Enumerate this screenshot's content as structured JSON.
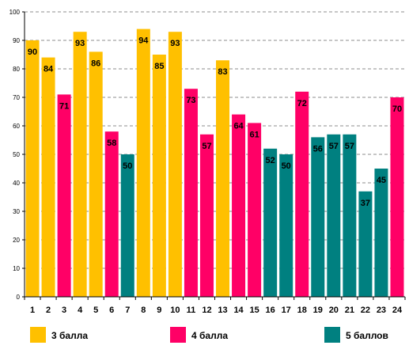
{
  "chart_data": {
    "type": "bar",
    "categories": [
      "1",
      "2",
      "3",
      "4",
      "5",
      "6",
      "7",
      "8",
      "9",
      "10",
      "11",
      "12",
      "13",
      "14",
      "15",
      "16",
      "17",
      "18",
      "19",
      "20",
      "21",
      "22",
      "23",
      "24"
    ],
    "values": [
      90,
      84,
      71,
      93,
      86,
      58,
      50,
      94,
      85,
      93,
      73,
      57,
      83,
      64,
      61,
      52,
      50,
      72,
      56,
      57,
      57,
      37,
      45,
      70
    ],
    "groups": [
      "3 балла",
      "3 балла",
      "4 балла",
      "3 балла",
      "3 балла",
      "4 балла",
      "5 баллов",
      "3 балла",
      "3 балла",
      "3 балла",
      "4 балла",
      "4 балла",
      "3 балла",
      "4 балла",
      "4 балла",
      "5 баллов",
      "5 баллов",
      "4 балла",
      "5 баллов",
      "5 баллов",
      "5 баллов",
      "5 баллов",
      "5 баллов",
      "4 балла"
    ],
    "ylim": [
      0,
      100
    ],
    "yticks": [
      0,
      10,
      20,
      30,
      40,
      50,
      60,
      70,
      80,
      90,
      100
    ],
    "grid": true,
    "legend": [
      {
        "name": "3 балла",
        "color": "#FFC000"
      },
      {
        "name": "4 балла",
        "color": "#FF0066"
      },
      {
        "name": "5 баллов",
        "color": "#008080"
      }
    ],
    "legend_position": "bottom"
  }
}
